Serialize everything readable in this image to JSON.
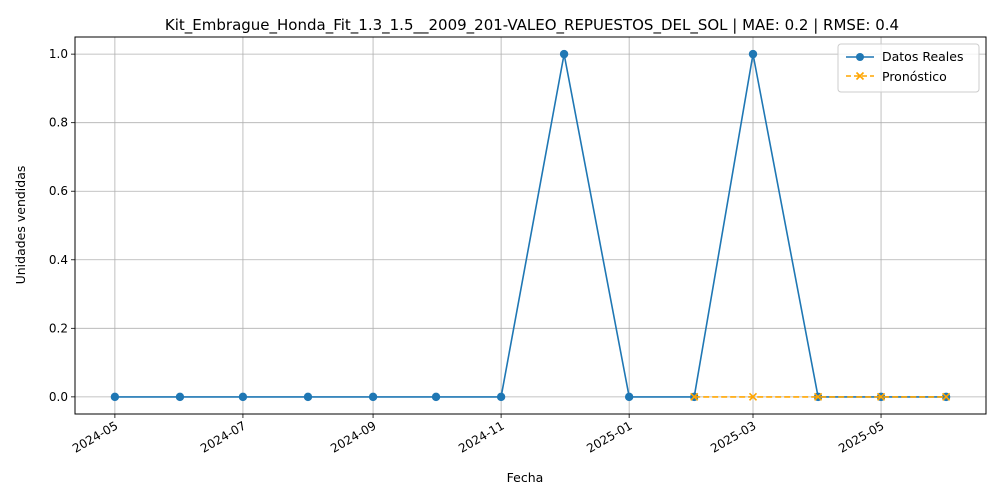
{
  "chart_data": {
    "type": "line",
    "title": "Kit_Embrague_Honda_Fit_1.3_1.5__2009_201-VALEO_REPUESTOS_DEL_SOL | MAE: 0.2 | RMSE: 0.4",
    "xlabel": "Fecha",
    "ylabel": "Unidades vendidas",
    "ylim": [
      -0.05,
      1.05
    ],
    "grid": true,
    "legend_position": "top-right",
    "x_ticks": [
      "2024-05",
      "2024-07",
      "2024-09",
      "2024-11",
      "2025-01",
      "2025-03",
      "2025-05"
    ],
    "y_ticks": [
      "0.0",
      "0.2",
      "0.4",
      "0.6",
      "0.8",
      "1.0"
    ],
    "series": [
      {
        "name": "Datos Reales",
        "color": "#1f77b4",
        "style": "solid",
        "marker": "circle",
        "x": [
          "2024-05-01",
          "2024-06-01",
          "2024-07-01",
          "2024-08-01",
          "2024-09-01",
          "2024-10-01",
          "2024-11-01",
          "2024-12-01",
          "2025-01-01",
          "2025-02-01",
          "2025-03-01",
          "2025-04-01",
          "2025-05-01",
          "2025-06-01"
        ],
        "values": [
          0,
          0,
          0,
          0,
          0,
          0,
          0,
          1,
          0,
          0,
          1,
          0,
          0,
          0
        ]
      },
      {
        "name": "Pronóstico",
        "color": "#ffa500",
        "style": "dashed",
        "marker": "x",
        "x": [
          "2025-02-01",
          "2025-03-01",
          "2025-04-01",
          "2025-05-01",
          "2025-06-01"
        ],
        "values": [
          0,
          0,
          0,
          0,
          0
        ]
      }
    ]
  }
}
